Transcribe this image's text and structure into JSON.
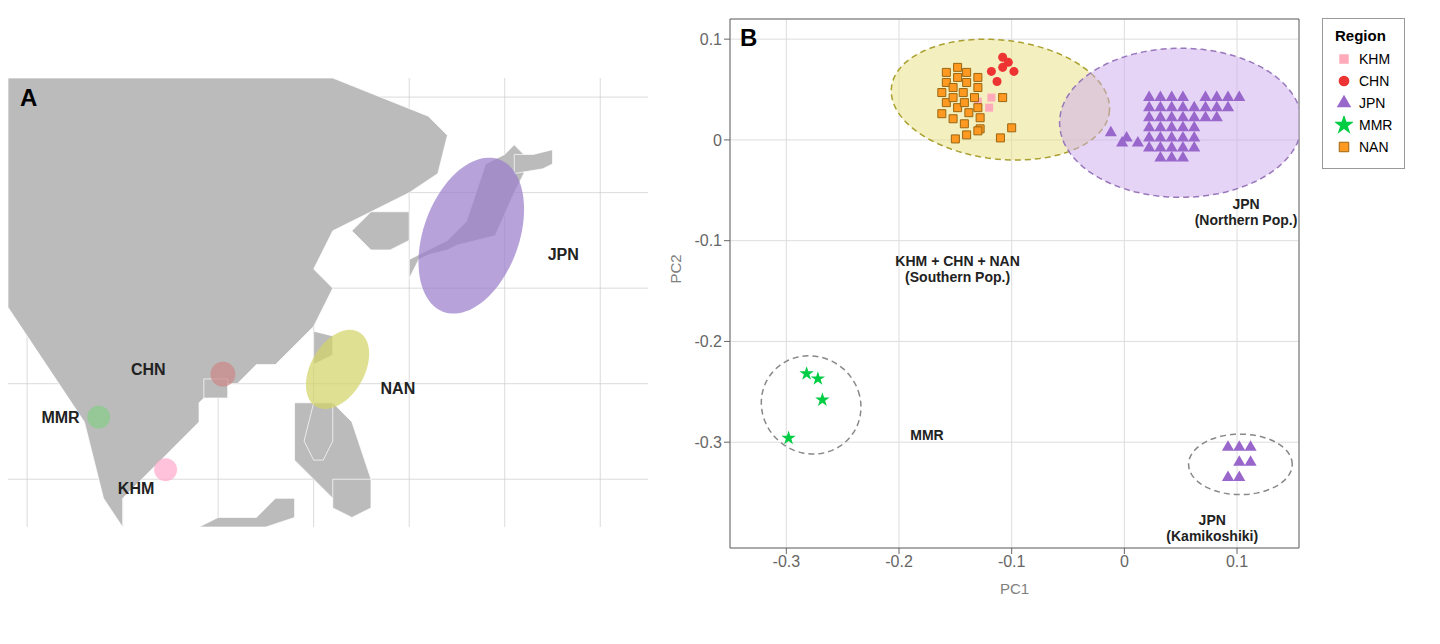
{
  "chart_data": [
    {
      "type": "map",
      "title": "A",
      "xlim": [
        88,
        155
      ],
      "ylim": [
        5,
        52
      ],
      "xticks": [
        90,
        100,
        110,
        120,
        130,
        140,
        150
      ],
      "yticks": [
        10,
        20,
        30,
        40,
        50
      ],
      "grid": true,
      "tick_labels": false,
      "land": {
        "color": "#bbbbbb",
        "edge_color": "#ffffff",
        "polygons": [
          [
            [
              88,
              52
            ],
            [
              100,
              52
            ],
            [
              110,
              52
            ],
            [
              122,
              52
            ],
            [
              132,
              48
            ],
            [
              134,
              46
            ],
            [
              133,
              42
            ],
            [
              130,
              40
            ],
            [
              126,
              38
            ],
            [
              122,
              36
            ],
            [
              120,
              32
            ],
            [
              122,
              30
            ],
            [
              120,
              26
            ],
            [
              116,
              22
            ],
            [
              114,
              22
            ],
            [
              112,
              20
            ],
            [
              110,
              20
            ],
            [
              108,
              18
            ],
            [
              108,
              16
            ],
            [
              104,
              12
            ],
            [
              102,
              10
            ],
            [
              100,
              8
            ],
            [
              100,
              5
            ],
            [
              98,
              8
            ],
            [
              96,
              16
            ],
            [
              92,
              22
            ],
            [
              88,
              28
            ],
            [
              88,
              52
            ]
          ],
          [
            [
              126,
              38
            ],
            [
              130,
              38
            ],
            [
              130,
              35
            ],
            [
              128,
              34
            ],
            [
              126,
              34
            ],
            [
              124,
              36
            ],
            [
              126,
              38
            ]
          ],
          [
            [
              120,
              25.5
            ],
            [
              122,
              25
            ],
            [
              122,
              23
            ],
            [
              120,
              22
            ],
            [
              120,
              25.5
            ]
          ],
          [
            [
              130,
              31
            ],
            [
              131,
              33
            ],
            [
              132,
              33.5
            ],
            [
              134,
              34
            ],
            [
              135,
              34.5
            ],
            [
              137,
              35
            ],
            [
              139,
              35.5
            ],
            [
              141,
              40
            ],
            [
              142,
              42
            ],
            [
              142,
              44
            ],
            [
              141,
              45
            ],
            [
              140,
              44
            ],
            [
              138,
              43
            ],
            [
              136,
              37
            ],
            [
              135,
              36
            ],
            [
              134,
              35
            ],
            [
              133,
              34.5
            ],
            [
              132,
              34
            ],
            [
              130,
              33
            ],
            [
              130,
              31
            ]
          ],
          [
            [
              141,
              44
            ],
            [
              143,
              44
            ],
            [
              145,
              44.5
            ],
            [
              145,
              43
            ],
            [
              144,
              42.5
            ],
            [
              141,
              42
            ],
            [
              141,
              44
            ]
          ],
          [
            [
              118,
              18
            ],
            [
              122,
              18
            ],
            [
              124,
              16
            ],
            [
              126,
              10
            ],
            [
              124,
              8
            ],
            [
              122,
              8
            ],
            [
              120,
              10
            ],
            [
              118,
              12
            ],
            [
              118,
              18
            ]
          ],
          [
            [
              120,
              18
            ],
            [
              122,
              18
            ],
            [
              122,
              14
            ],
            [
              121,
              12
            ],
            [
              120,
              12
            ],
            [
              119,
              14
            ],
            [
              120,
              18
            ]
          ],
          [
            [
              122,
              10
            ],
            [
              126,
              10
            ],
            [
              126,
              7
            ],
            [
              124,
              6
            ],
            [
              122,
              7
            ],
            [
              122,
              10
            ]
          ],
          [
            [
              108.5,
              20.5
            ],
            [
              111,
              20.5
            ],
            [
              111,
              18.5
            ],
            [
              108.5,
              18.5
            ],
            [
              108.5,
              20.5
            ]
          ],
          [
            [
              108,
              5
            ],
            [
              115,
              5
            ],
            [
              118,
              6
            ],
            [
              118,
              8
            ],
            [
              116,
              8
            ],
            [
              114,
              6
            ],
            [
              110,
              6
            ],
            [
              108,
              5
            ]
          ]
        ]
      },
      "ellipses": [
        {
          "cx": 136.5,
          "cy": 35.5,
          "rx": 5.0,
          "ry": 8.5,
          "angle": -20,
          "color": "#9b7fcc"
        },
        {
          "cx": 122.5,
          "cy": 21.5,
          "rx": 2.8,
          "ry": 4.5,
          "angle": -30,
          "color": "#d4d46a"
        },
        {
          "cx": 110.5,
          "cy": 21.0,
          "rx": 1.3,
          "ry": 1.3,
          "angle": 0,
          "color": "#cc8888"
        },
        {
          "cx": 97.5,
          "cy": 16.5,
          "rx": 1.2,
          "ry": 1.2,
          "angle": 0,
          "color": "#88cc88"
        },
        {
          "cx": 104.5,
          "cy": 11.0,
          "rx": 1.2,
          "ry": 1.2,
          "angle": 0,
          "color": "#ffaacc"
        }
      ],
      "annotations": [
        {
          "text": "JPN",
          "x": 144.5,
          "y": 33.5
        },
        {
          "text": "NAN",
          "x": 127.0,
          "y": 19.5
        },
        {
          "text": "CHN",
          "x": 104.5,
          "y": 21.5
        },
        {
          "text": "MMR",
          "x": 91.5,
          "y": 16.5
        },
        {
          "text": "KHM",
          "x": 99.5,
          "y": 9.0
        }
      ]
    },
    {
      "type": "scatter",
      "title": "B",
      "xlabel": "PC1",
      "ylabel": "PC2",
      "xlim": [
        -0.35,
        0.155
      ],
      "ylim": [
        -0.405,
        0.12
      ],
      "xticks": [
        -0.3,
        -0.2,
        -0.1,
        0.0,
        0.1
      ],
      "yticks": [
        -0.3,
        -0.2,
        -0.1,
        0.0,
        0.1
      ],
      "grid": true,
      "legend": "right",
      "legend_title": "Region",
      "series": [
        {
          "name": "KHM",
          "color": "#ffaabb",
          "marker": "square",
          "values": [
            [
              -0.13,
              0.038
            ],
            [
              -0.12,
              0.032
            ],
            [
              -0.118,
              0.042
            ]
          ]
        },
        {
          "name": "CHN",
          "color": "#ee3333",
          "marker": "circle",
          "values": [
            [
              -0.118,
              0.068
            ],
            [
              -0.108,
              0.072
            ],
            [
              -0.113,
              0.058
            ],
            [
              -0.098,
              0.068
            ],
            [
              -0.108,
              0.082
            ],
            [
              -0.103,
              0.077
            ]
          ]
        },
        {
          "name": "JPN",
          "color": "#9966cc",
          "marker": "triangle",
          "values": [
            [
              0.022,
              0.042
            ],
            [
              0.032,
              0.042
            ],
            [
              0.042,
              0.042
            ],
            [
              0.052,
              0.042
            ],
            [
              0.022,
              0.032
            ],
            [
              0.032,
              0.032
            ],
            [
              0.042,
              0.032
            ],
            [
              0.052,
              0.032
            ],
            [
              0.062,
              0.032
            ],
            [
              0.022,
              0.022
            ],
            [
              0.032,
              0.022
            ],
            [
              0.042,
              0.022
            ],
            [
              0.052,
              0.022
            ],
            [
              0.062,
              0.022
            ],
            [
              0.022,
              0.012
            ],
            [
              0.032,
              0.012
            ],
            [
              0.042,
              0.012
            ],
            [
              0.052,
              0.012
            ],
            [
              0.062,
              0.012
            ],
            [
              0.022,
              0.002
            ],
            [
              0.032,
              0.002
            ],
            [
              0.042,
              0.002
            ],
            [
              0.052,
              0.002
            ],
            [
              0.062,
              0.002
            ],
            [
              0.022,
              -0.008
            ],
            [
              0.032,
              -0.008
            ],
            [
              0.042,
              -0.008
            ],
            [
              0.052,
              -0.008
            ],
            [
              0.062,
              -0.008
            ],
            [
              0.032,
              -0.018
            ],
            [
              0.042,
              -0.018
            ],
            [
              0.052,
              -0.018
            ],
            [
              0.072,
              0.042
            ],
            [
              0.082,
              0.042
            ],
            [
              0.092,
              0.042
            ],
            [
              0.072,
              0.032
            ],
            [
              0.082,
              0.032
            ],
            [
              0.092,
              0.032
            ],
            [
              0.072,
              0.022
            ],
            [
              0.082,
              0.022
            ],
            [
              0.002,
              0.002
            ],
            [
              0.012,
              -0.003
            ],
            [
              -0.012,
              0.007
            ],
            [
              -0.002,
              -0.003
            ],
            [
              0.102,
              0.042
            ],
            [
              0.092,
              -0.305
            ],
            [
              0.102,
              -0.305
            ],
            [
              0.112,
              -0.305
            ],
            [
              0.102,
              -0.32
            ],
            [
              0.112,
              -0.32
            ],
            [
              0.092,
              -0.335
            ],
            [
              0.102,
              -0.335
            ]
          ]
        },
        {
          "name": "MMR",
          "color": "#00cc44",
          "marker": "star",
          "values": [
            [
              -0.282,
              -0.232
            ],
            [
              -0.272,
              -0.237
            ],
            [
              -0.268,
              -0.258
            ],
            [
              -0.298,
              -0.296
            ]
          ]
        },
        {
          "name": "NAN",
          "color": "#ff9922",
          "edge_color": "#996611",
          "marker": "square",
          "values": [
            [
              -0.162,
              0.026
            ],
            [
              -0.152,
              0.021
            ],
            [
              -0.142,
              0.016
            ],
            [
              -0.128,
              0.011
            ],
            [
              -0.158,
              0.037
            ],
            [
              -0.148,
              0.032
            ],
            [
              -0.138,
              0.027
            ],
            [
              -0.128,
              0.022
            ],
            [
              -0.162,
              0.047
            ],
            [
              -0.152,
              0.042
            ],
            [
              -0.142,
              0.037
            ],
            [
              -0.13,
              0.032
            ],
            [
              -0.158,
              0.057
            ],
            [
              -0.152,
              0.052
            ],
            [
              -0.143,
              0.047
            ],
            [
              -0.133,
              0.042
            ],
            [
              -0.158,
              0.067
            ],
            [
              -0.148,
              0.062
            ],
            [
              -0.14,
              0.057
            ],
            [
              -0.13,
              0.052
            ],
            [
              -0.148,
              0.072
            ],
            [
              -0.14,
              0.067
            ],
            [
              -0.13,
              0.062
            ],
            [
              -0.15,
              0.001
            ],
            [
              -0.14,
              0.005
            ],
            [
              -0.13,
              0.009
            ],
            [
              -0.11,
              0.002
            ],
            [
              -0.1,
              0.012
            ],
            [
              -0.108,
              0.042
            ]
          ]
        }
      ],
      "ellipses": [
        {
          "cx": -0.11,
          "cy": 0.04,
          "width": 0.195,
          "height": 0.118,
          "angle": -8,
          "color": "#e8e080",
          "edge_color": "#aaa030"
        },
        {
          "cx": 0.05,
          "cy": 0.017,
          "width": 0.215,
          "height": 0.148,
          "angle": 0,
          "color": "#ccaaee",
          "edge_color": "#9977bb"
        },
        {
          "cx": -0.278,
          "cy": -0.263,
          "width": 0.088,
          "height": 0.098,
          "angle": 12,
          "edge_color": "#888888"
        },
        {
          "cx": 0.103,
          "cy": -0.322,
          "width": 0.092,
          "height": 0.06,
          "angle": 0,
          "edge_color": "#888888"
        }
      ],
      "annotations": [
        {
          "text": "KHM + CHN + NAN\n(Southern Pop.)",
          "x": -0.148,
          "y": -0.128
        },
        {
          "text": "JPN\n(Northern Pop.)",
          "x": 0.108,
          "y": -0.072
        },
        {
          "text": "MMR",
          "x": -0.19,
          "y": -0.293
        },
        {
          "text": "JPN\n(Kamikoshiki)",
          "x": 0.078,
          "y": -0.368
        }
      ]
    }
  ]
}
